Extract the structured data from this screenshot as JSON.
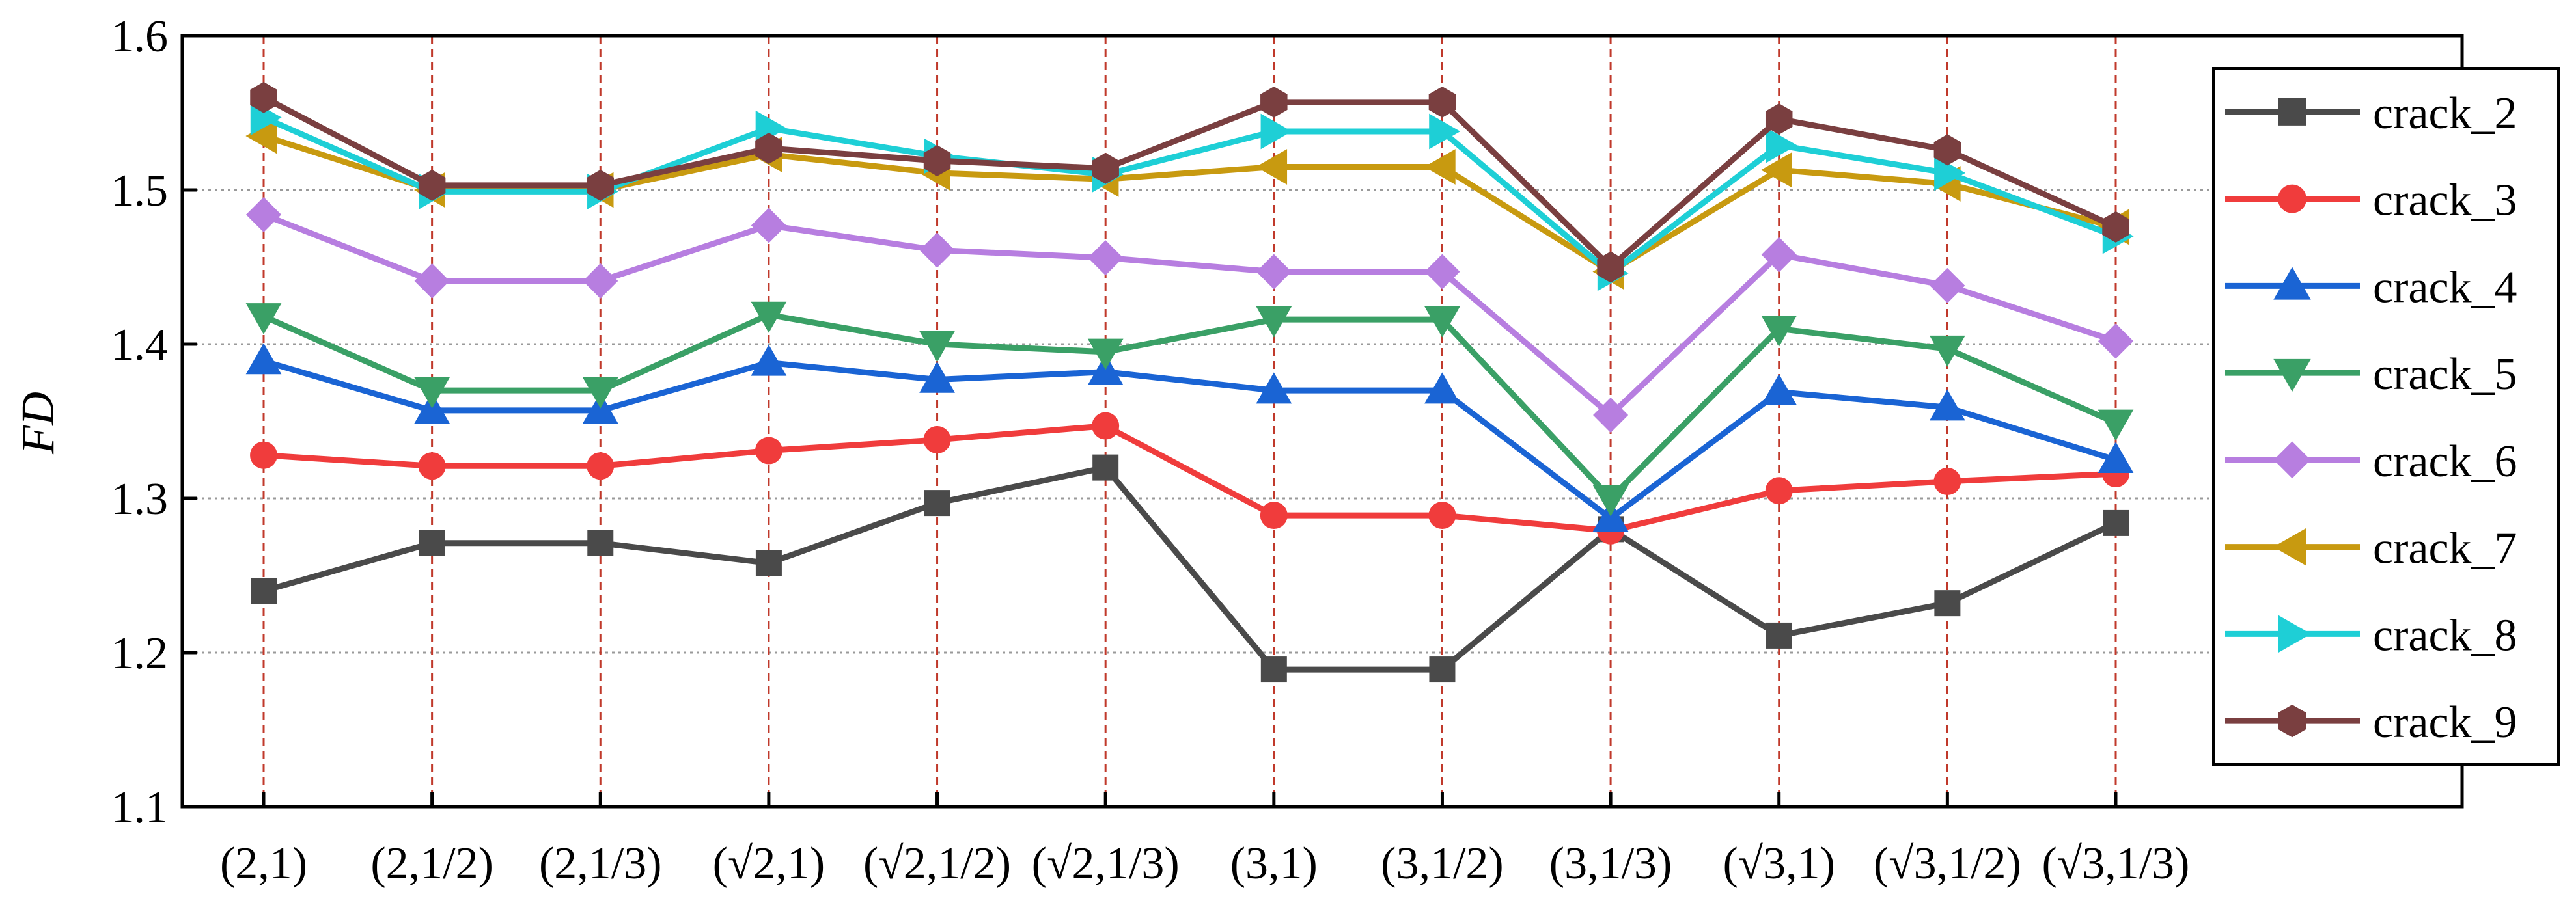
{
  "chart_data": {
    "type": "line",
    "title": "",
    "xlabel": "",
    "ylabel": "FD",
    "ylim": [
      1.1,
      1.6
    ],
    "yticks": [
      "1.1",
      "1.2",
      "1.3",
      "1.4",
      "1.5",
      "1.6"
    ],
    "categories": [
      "(2,1)",
      "(2,1/2)",
      "(2,1/3)",
      "(√2,1)",
      "(√2,1/2)",
      "(√2,1/3)",
      "(3,1)",
      "(3,1/2)",
      "(3,1/3)",
      "(√3,1)",
      "(√3,1/2)",
      "(√3,1/3)"
    ],
    "legend_position": "right",
    "grid": "horizontal dotted gray at y ticks; vertical dashed red at x categories",
    "series": [
      {
        "name": "crack_2",
        "color": "#4a4a4a",
        "marker": "square",
        "values": [
          1.24,
          1.271,
          1.271,
          1.258,
          1.297,
          1.32,
          1.189,
          1.189,
          1.28,
          1.211,
          1.232,
          1.284
        ]
      },
      {
        "name": "crack_3",
        "color": "#f03c3c",
        "marker": "circle",
        "values": [
          1.328,
          1.321,
          1.321,
          1.331,
          1.338,
          1.347,
          1.289,
          1.289,
          1.279,
          1.305,
          1.311,
          1.316
        ]
      },
      {
        "name": "crack_4",
        "color": "#1a64d4",
        "marker": "triangle-up",
        "values": [
          1.389,
          1.357,
          1.357,
          1.388,
          1.377,
          1.382,
          1.37,
          1.37,
          1.287,
          1.369,
          1.359,
          1.325
        ]
      },
      {
        "name": "crack_5",
        "color": "#3aa066",
        "marker": "triangle-down",
        "values": [
          1.418,
          1.37,
          1.37,
          1.419,
          1.4,
          1.395,
          1.416,
          1.416,
          1.3,
          1.41,
          1.397,
          1.349
        ]
      },
      {
        "name": "crack_6",
        "color": "#b77ee0",
        "marker": "diamond",
        "values": [
          1.484,
          1.441,
          1.441,
          1.477,
          1.461,
          1.456,
          1.447,
          1.447,
          1.354,
          1.458,
          1.438,
          1.402
        ]
      },
      {
        "name": "crack_7",
        "color": "#c89a10",
        "marker": "triangle-left",
        "values": [
          1.535,
          1.5,
          1.5,
          1.523,
          1.511,
          1.507,
          1.515,
          1.515,
          1.447,
          1.513,
          1.504,
          1.476
        ]
      },
      {
        "name": "crack_8",
        "color": "#1ecfd6",
        "marker": "triangle-right",
        "values": [
          1.547,
          1.499,
          1.499,
          1.54,
          1.522,
          1.51,
          1.538,
          1.538,
          1.446,
          1.529,
          1.511,
          1.47
        ]
      },
      {
        "name": "crack_9",
        "color": "#7a3f40",
        "marker": "hexagon",
        "values": [
          1.56,
          1.503,
          1.503,
          1.527,
          1.519,
          1.514,
          1.557,
          1.557,
          1.45,
          1.546,
          1.526,
          1.476
        ]
      }
    ]
  }
}
